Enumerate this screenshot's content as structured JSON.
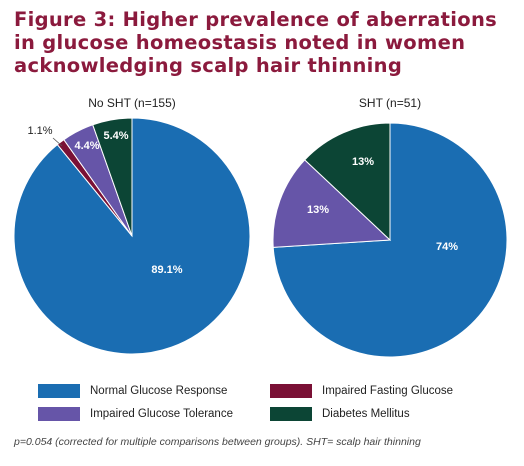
{
  "figure": {
    "title_lines": [
      "Figure 3: Higher prevalence of aberrations",
      "in glucose homeostasis noted in women",
      "acknowledging scalp hair thinning"
    ],
    "footnote": "p=0.054 (corrected for multiple comparisons between groups). SHT= scalp hair thinning"
  },
  "colors": {
    "Normal Glucose Response": "#1a6db2",
    "Impaired Glucose Tolerance": "#6655a8",
    "Impaired Fasting Glucose": "#7a1035",
    "Diabetes Mellitus": "#0c4535"
  },
  "legend": [
    {
      "label": "Normal Glucose Response"
    },
    {
      "label": "Impaired Fasting Glucose"
    },
    {
      "label": "Impaired Glucose Tolerance"
    },
    {
      "label": "Diabetes Mellitus"
    }
  ],
  "chart_data": [
    {
      "type": "pie",
      "title": "No SHT (n=155)",
      "slices": [
        {
          "label": "Normal Glucose Response",
          "value": 89.1,
          "display": "89.1%"
        },
        {
          "label": "Impaired Fasting Glucose",
          "value": 1.1,
          "display": "1.1%"
        },
        {
          "label": "Impaired Glucose Tolerance",
          "value": 4.4,
          "display": "4.4%"
        },
        {
          "label": "Diabetes Mellitus",
          "value": 5.4,
          "display": "5.4%"
        }
      ]
    },
    {
      "type": "pie",
      "title": "SHT (n=51)",
      "slices": [
        {
          "label": "Normal Glucose Response",
          "value": 74,
          "display": "74%"
        },
        {
          "label": "Impaired Glucose Tolerance",
          "value": 13,
          "display": "13%"
        },
        {
          "label": "Diabetes Mellitus",
          "value": 13,
          "display": "13%"
        }
      ]
    }
  ]
}
